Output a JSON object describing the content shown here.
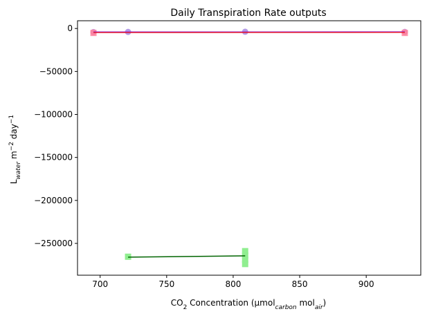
{
  "chart_data": {
    "type": "scatter",
    "title": "Daily Transpiration Rate outputs",
    "xlabel": {
      "parts": [
        {
          "text": "CO",
          "sub": false
        },
        {
          "text": "2",
          "sub": true
        },
        {
          "text": " Concentration (μmol",
          "sub": false
        },
        {
          "text": "carbon",
          "sub": true,
          "italic": true
        },
        {
          "text": " mol",
          "sub": false
        },
        {
          "text": "air",
          "sub": true,
          "italic": true
        },
        {
          "text": ")",
          "sub": false
        }
      ]
    },
    "ylabel": {
      "parts": [
        {
          "text": "L",
          "sub": false
        },
        {
          "text": "water",
          "sub": true,
          "italic": true
        },
        {
          "text": " m",
          "sub": false
        },
        {
          "text": "−2",
          "sup": true
        },
        {
          "text": " day",
          "sub": false
        },
        {
          "text": "−1",
          "sup": true
        }
      ]
    },
    "xlim": [
      683,
      941
    ],
    "ylim": [
      -287000,
      9000
    ],
    "x_ticks": [
      700,
      750,
      800,
      850,
      900
    ],
    "y_ticks": [
      0,
      -50000,
      -100000,
      -150000,
      -200000,
      -250000
    ],
    "grid": false,
    "series": [
      {
        "marker": "circle",
        "color": "#9370db",
        "alpha": 0.7,
        "points": [
          [
            695,
            -4200
          ],
          [
            721,
            -4000
          ],
          [
            809,
            -3800
          ],
          [
            929,
            -4000
          ]
        ]
      },
      {
        "marker": "circle",
        "color": "#ff8fb0",
        "alpha": 0.6,
        "points": [
          [
            695,
            -4500
          ],
          [
            929,
            -4200
          ]
        ]
      },
      {
        "marker": "square",
        "color": "#ff7f9a",
        "alpha": 0.8,
        "points": [
          [
            695,
            -5200
          ],
          [
            929,
            -5200
          ]
        ]
      },
      {
        "marker": "square",
        "color": "#90ee90",
        "alpha": 1.0,
        "points": [
          [
            721,
            -265500
          ],
          [
            809,
            -259000
          ],
          [
            809,
            -264000
          ],
          [
            809,
            -269000
          ],
          [
            809,
            -274000
          ]
        ]
      }
    ],
    "lines": [
      {
        "color": "#8a2be2",
        "width": 1.5,
        "points": [
          [
            695,
            -4100
          ],
          [
            929,
            -4000
          ]
        ]
      },
      {
        "color": "#e8192c",
        "width": 1.5,
        "points": [
          [
            695,
            -4700
          ],
          [
            929,
            -4500
          ]
        ]
      },
      {
        "color": "#006400",
        "width": 1.5,
        "points": [
          [
            721,
            -266000
          ],
          [
            809,
            -264500
          ]
        ]
      }
    ]
  }
}
